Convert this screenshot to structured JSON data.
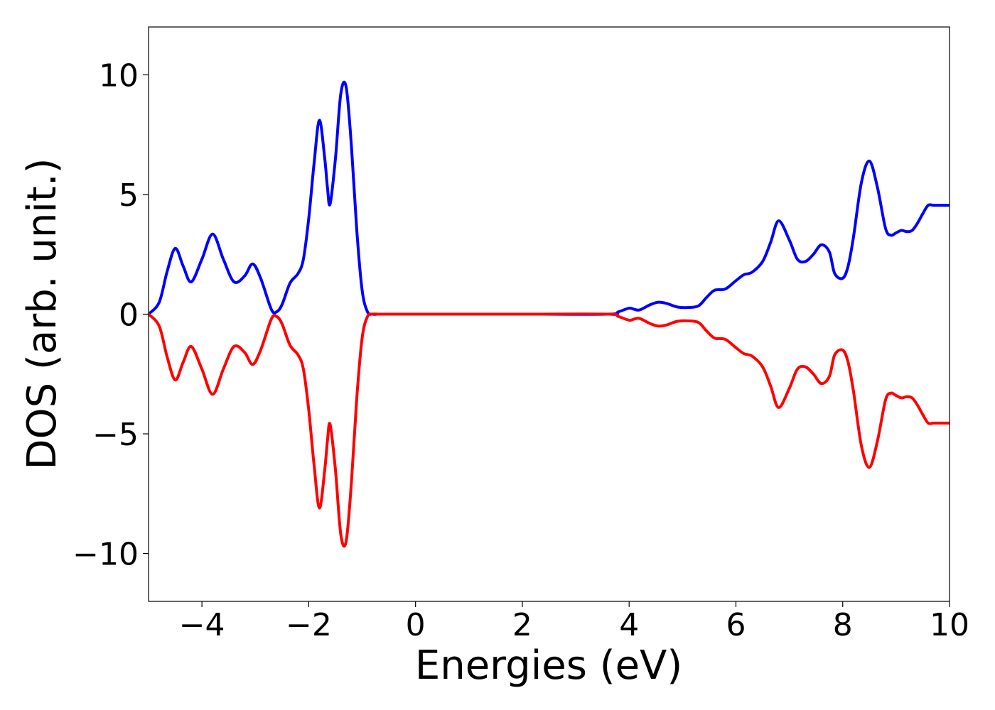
{
  "chart_data": {
    "type": "line",
    "xlabel": "Energies (eV)",
    "ylabel": "DOS (arb. unit.)",
    "xlim": [
      -5,
      10
    ],
    "ylim": [
      -12,
      12
    ],
    "xticks": [
      -4,
      -2,
      0,
      2,
      4,
      6,
      8,
      10
    ],
    "yticks": [
      -10,
      -5,
      0,
      5,
      10
    ],
    "xtick_labels": [
      "−4",
      "−2",
      "0",
      "2",
      "4",
      "6",
      "8",
      "10"
    ],
    "ytick_labels": [
      "−10",
      "−5",
      "0",
      "5",
      "10"
    ],
    "grid": false,
    "legend": "none",
    "series": [
      {
        "color": "#0000ff",
        "x": [
          -5.0,
          -4.8,
          -4.65,
          -4.5,
          -4.35,
          -4.2,
          -4.0,
          -3.8,
          -3.6,
          -3.4,
          -3.2,
          -3.05,
          -2.9,
          -2.7,
          -2.6,
          -2.5,
          -2.35,
          -2.2,
          -2.1,
          -2.0,
          -1.9,
          -1.8,
          -1.7,
          -1.65,
          -1.6,
          -1.5,
          -1.4,
          -1.3,
          -1.2,
          -1.1,
          -1.0,
          -0.9,
          -0.8,
          -0.7,
          -0.6,
          -0.5,
          0.0,
          2.0,
          3.6,
          3.8,
          4.0,
          4.1,
          4.2,
          4.4,
          4.55,
          4.7,
          4.9,
          5.1,
          5.3,
          5.45,
          5.6,
          5.8,
          6.0,
          6.15,
          6.3,
          6.5,
          6.65,
          6.8,
          7.0,
          7.15,
          7.3,
          7.45,
          7.6,
          7.75,
          7.85,
          8.0,
          8.1,
          8.2,
          8.35,
          8.5,
          8.65,
          8.8,
          8.9,
          9.0,
          9.1,
          9.2,
          9.3,
          9.4,
          9.5,
          9.6,
          9.7,
          9.8,
          10.0
        ],
        "values": [
          0.0,
          0.5,
          1.8,
          2.75,
          2.0,
          1.35,
          2.3,
          3.35,
          2.3,
          1.35,
          1.6,
          2.1,
          1.5,
          0.2,
          0.1,
          0.4,
          1.3,
          1.7,
          2.3,
          4.0,
          6.3,
          8.1,
          6.5,
          5.3,
          4.6,
          6.5,
          9.2,
          9.5,
          7.0,
          3.5,
          1.0,
          0.1,
          0.0,
          0.0,
          0.0,
          0.0,
          0.0,
          0.0,
          0.0,
          0.1,
          0.25,
          0.2,
          0.18,
          0.4,
          0.5,
          0.45,
          0.3,
          0.28,
          0.35,
          0.7,
          1.0,
          1.05,
          1.4,
          1.65,
          1.75,
          2.2,
          3.0,
          3.9,
          3.1,
          2.3,
          2.2,
          2.5,
          2.9,
          2.6,
          1.7,
          1.5,
          2.0,
          3.2,
          5.5,
          6.4,
          5.3,
          3.6,
          3.3,
          3.4,
          3.5,
          3.45,
          3.5,
          3.8,
          4.2,
          4.55,
          4.55,
          4.55,
          4.55
        ]
      },
      {
        "color": "#ff0000",
        "x": [
          -5.0,
          -4.8,
          -4.65,
          -4.5,
          -4.35,
          -4.2,
          -4.0,
          -3.8,
          -3.6,
          -3.4,
          -3.2,
          -3.05,
          -2.9,
          -2.7,
          -2.6,
          -2.5,
          -2.35,
          -2.2,
          -2.1,
          -2.0,
          -1.9,
          -1.8,
          -1.7,
          -1.65,
          -1.6,
          -1.5,
          -1.4,
          -1.3,
          -1.2,
          -1.1,
          -1.0,
          -0.9,
          -0.8,
          -0.7,
          -0.6,
          -0.5,
          0.0,
          2.0,
          3.6,
          3.8,
          4.0,
          4.1,
          4.2,
          4.4,
          4.55,
          4.7,
          4.9,
          5.1,
          5.3,
          5.45,
          5.6,
          5.8,
          6.0,
          6.15,
          6.3,
          6.5,
          6.65,
          6.8,
          7.0,
          7.15,
          7.3,
          7.45,
          7.6,
          7.75,
          7.85,
          8.0,
          8.1,
          8.2,
          8.35,
          8.5,
          8.65,
          8.8,
          8.9,
          9.0,
          9.1,
          9.2,
          9.3,
          9.4,
          9.5,
          9.6,
          9.7,
          9.8,
          10.0
        ],
        "values": [
          0.0,
          -0.5,
          -1.8,
          -2.75,
          -2.0,
          -1.35,
          -2.3,
          -3.35,
          -2.3,
          -1.35,
          -1.6,
          -2.1,
          -1.5,
          -0.2,
          -0.1,
          -0.4,
          -1.3,
          -1.7,
          -2.3,
          -4.0,
          -6.3,
          -8.1,
          -6.5,
          -5.3,
          -4.6,
          -6.5,
          -9.2,
          -9.5,
          -7.0,
          -3.5,
          -1.0,
          -0.1,
          0.0,
          0.0,
          0.0,
          0.0,
          0.0,
          0.0,
          0.0,
          -0.1,
          -0.25,
          -0.2,
          -0.18,
          -0.4,
          -0.5,
          -0.45,
          -0.3,
          -0.28,
          -0.35,
          -0.7,
          -1.0,
          -1.05,
          -1.4,
          -1.65,
          -1.75,
          -2.2,
          -3.0,
          -3.9,
          -3.1,
          -2.3,
          -2.2,
          -2.5,
          -2.9,
          -2.6,
          -1.7,
          -1.5,
          -2.0,
          -3.2,
          -5.5,
          -6.4,
          -5.3,
          -3.6,
          -3.3,
          -3.4,
          -3.5,
          -3.45,
          -3.5,
          -3.8,
          -4.2,
          -4.55,
          -4.55,
          -4.55,
          -4.55
        ]
      }
    ]
  }
}
